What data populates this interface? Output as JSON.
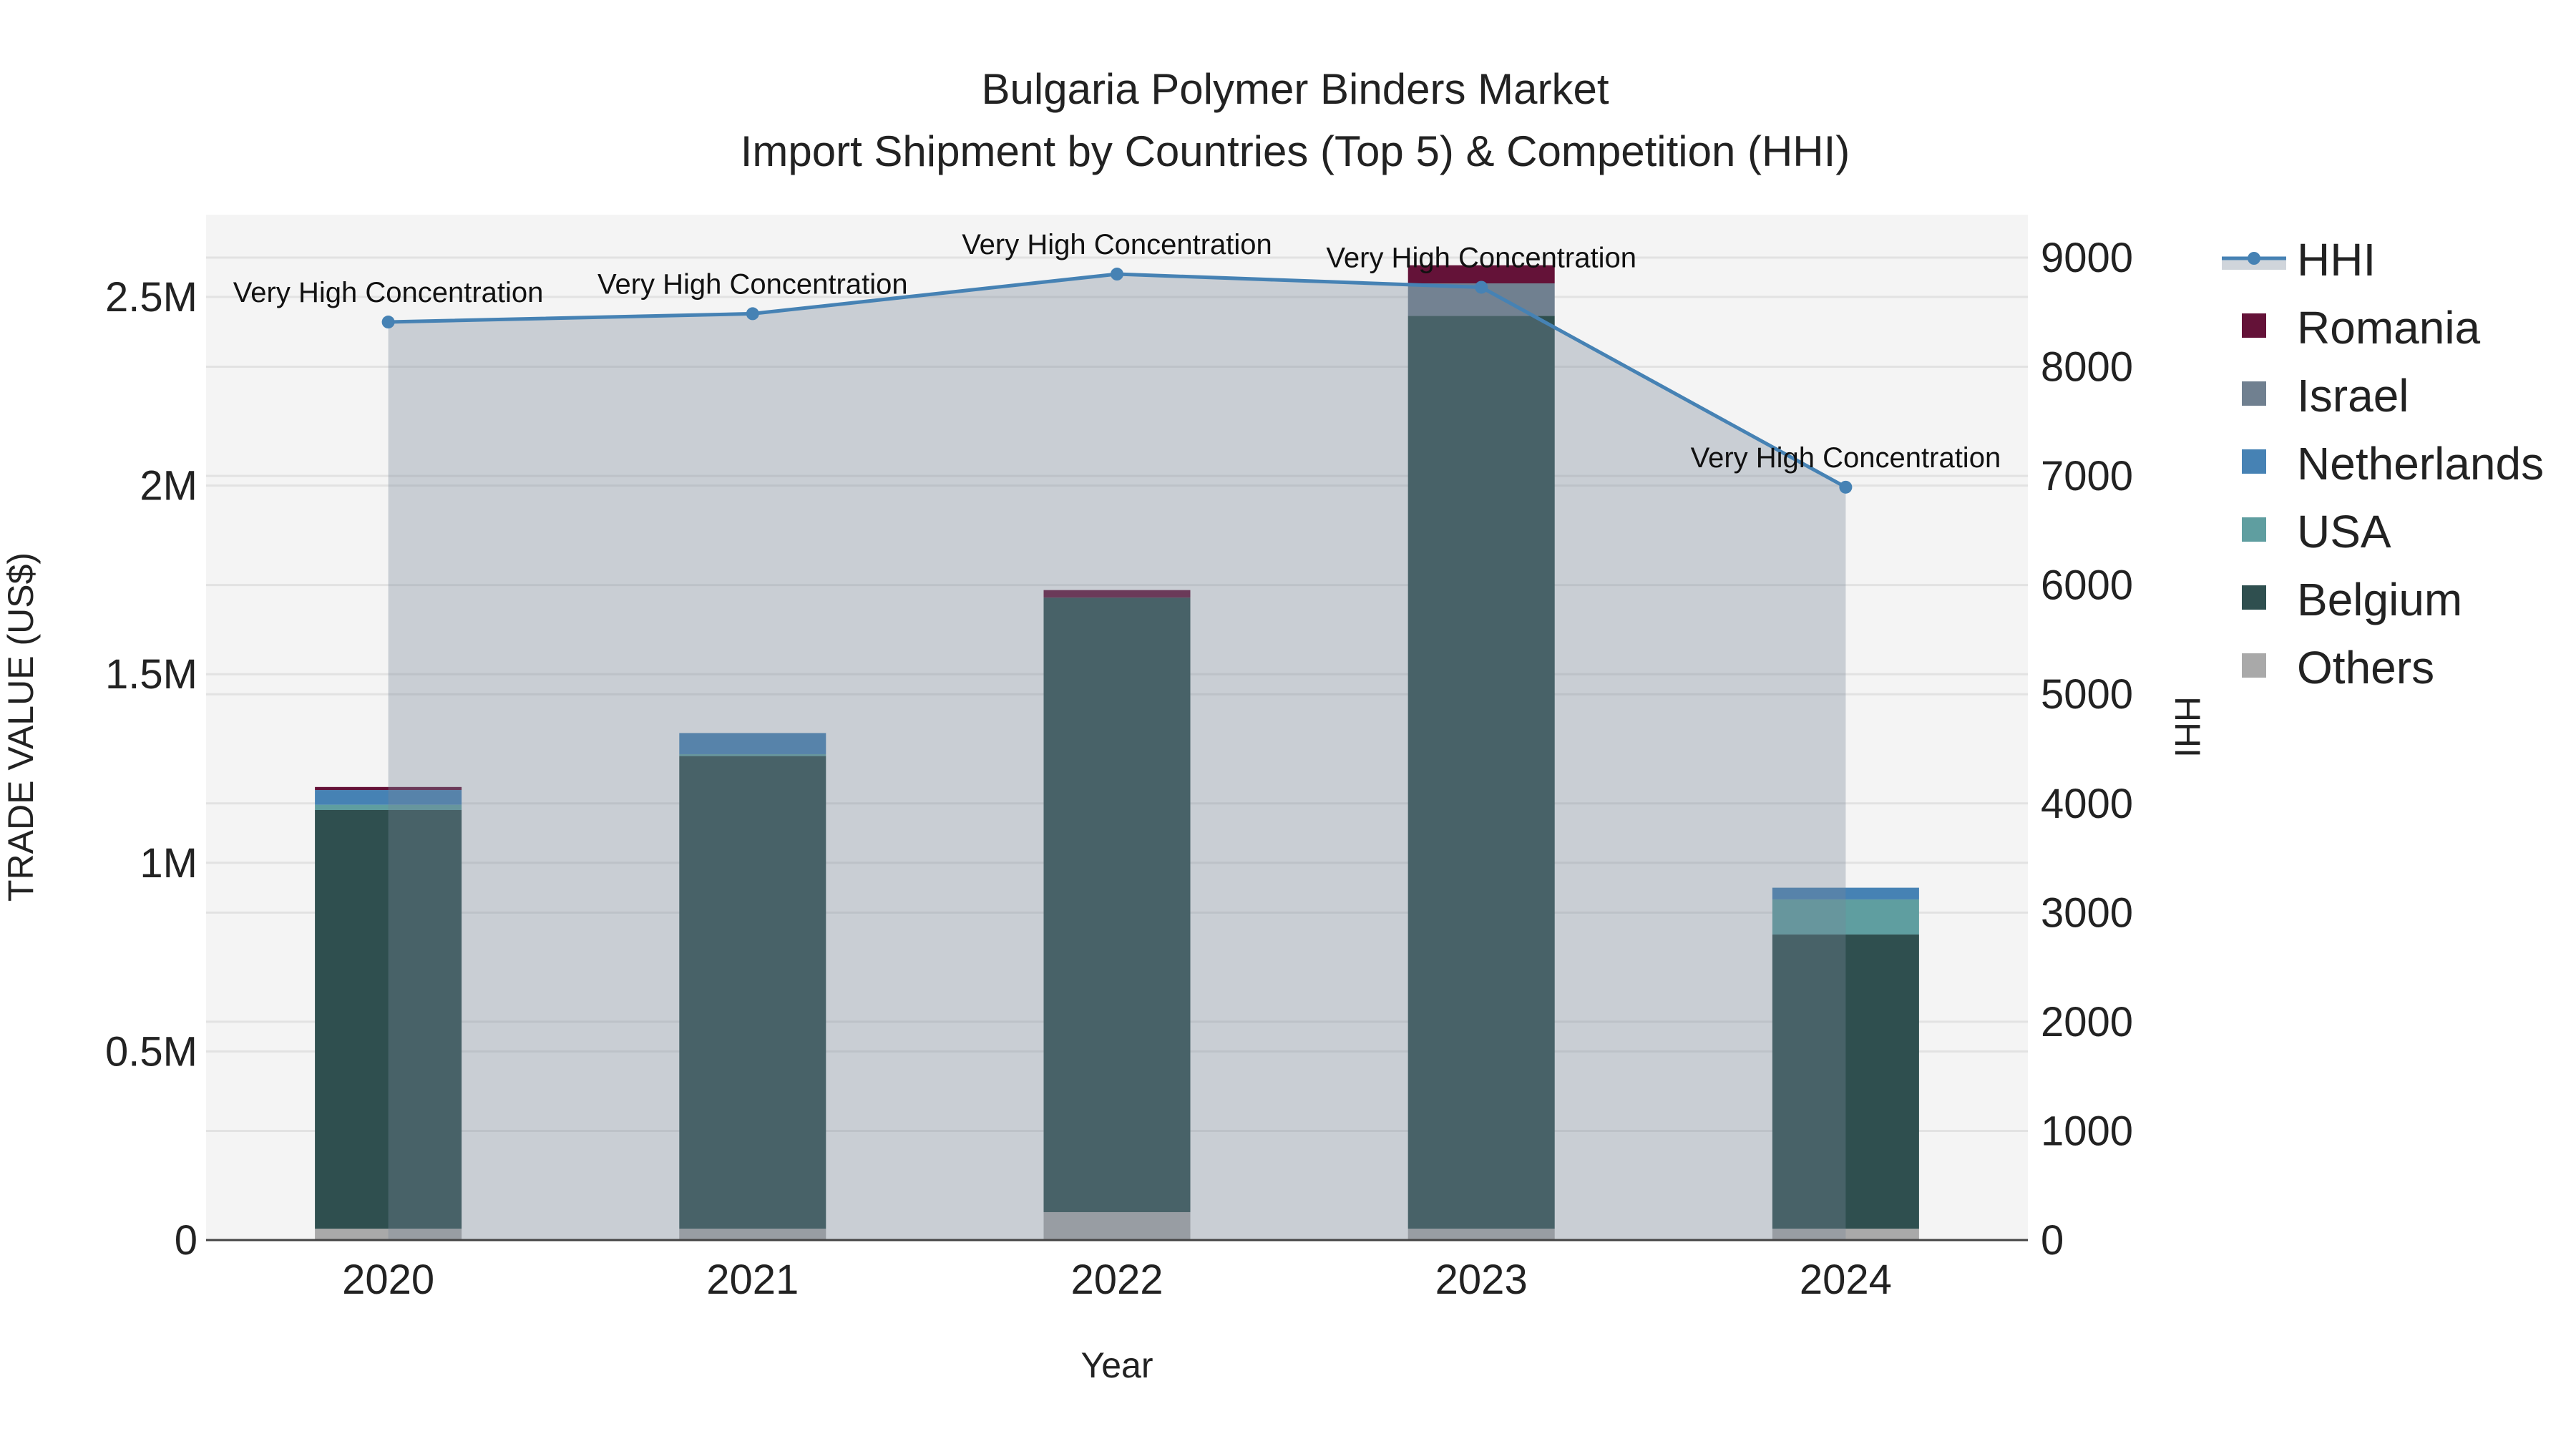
{
  "chart_data": {
    "type": "bar",
    "title": "Bulgaria Polymer Binders Market",
    "subtitle": "Import Shipment by Countries (Top 5) & Competition (HHI)",
    "xlabel": "Year",
    "ylabel": "TRADE VALUE (US$)",
    "y2label": "HHI",
    "categories": [
      "2020",
      "2021",
      "2022",
      "2023",
      "2024"
    ],
    "ylim": [
      0,
      2700000
    ],
    "y_ticks": [
      0,
      500000,
      1000000,
      1500000,
      2000000,
      2500000
    ],
    "y_tick_labels": [
      "0",
      "0.5M",
      "1M",
      "1.5M",
      "2M",
      "2.5M"
    ],
    "y2lim": [
      0,
      9400
    ],
    "y2_ticks": [
      0,
      1000,
      2000,
      3000,
      4000,
      5000,
      6000,
      7000,
      8000,
      9000
    ],
    "y2_tick_labels": [
      "0",
      "1000",
      "2000",
      "3000",
      "4000",
      "5000",
      "6000",
      "7000",
      "8000",
      "9000"
    ],
    "stacked": true,
    "series": [
      {
        "name": "Others",
        "color": "#a9a9a9",
        "values": [
          30000,
          30000,
          74000,
          30000,
          30000
        ]
      },
      {
        "name": "Belgium",
        "color": "#2f4f4f",
        "values": [
          1110000,
          1253000,
          1629000,
          2420000,
          780000
        ]
      },
      {
        "name": "USA",
        "color": "#5f9ea0",
        "values": [
          14000,
          5000,
          0,
          0,
          93000
        ]
      },
      {
        "name": "Netherlands",
        "color": "#4682b4",
        "values": [
          39000,
          56000,
          0,
          0,
          31000
        ]
      },
      {
        "name": "Israel",
        "color": "#708090",
        "values": [
          0,
          0,
          0,
          86000,
          0
        ]
      },
      {
        "name": "Romania",
        "color": "#641238",
        "values": [
          8000,
          0,
          20000,
          48000,
          0
        ]
      }
    ],
    "hhi": {
      "name": "HHI",
      "color": "#4682b4",
      "values": [
        8410,
        8486,
        8849,
        8728,
        6897
      ],
      "annotations": [
        "Very High Concentration",
        "Very High Concentration",
        "Very High Concentration",
        "Very High Concentration",
        "Very High Concentration"
      ]
    },
    "legend_order": [
      "HHI",
      "Romania",
      "Israel",
      "Netherlands",
      "USA",
      "Belgium",
      "Others"
    ],
    "legend": "right",
    "grid": true
  }
}
